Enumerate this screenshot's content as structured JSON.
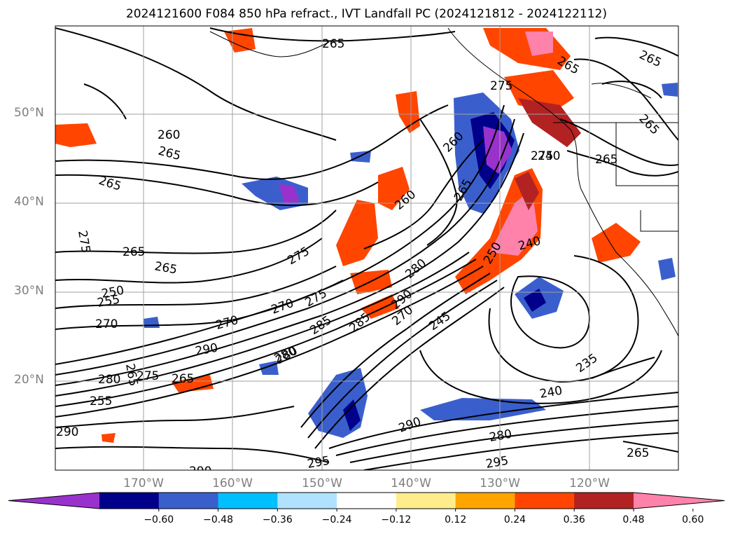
{
  "title": "2024121600 F084 850 hPa refract., IVT Landfall PC (2024121812 - 2024122112)",
  "lat_labels": [
    "50°N",
    "40°N",
    "30°N",
    "20°N"
  ],
  "lon_labels": [
    "170°W",
    "160°W",
    "150°W",
    "140°W",
    "130°W",
    "120°W"
  ],
  "contour_labels": [
    "265",
    "265",
    "265",
    "265",
    "265",
    "265",
    "260",
    "275",
    "265",
    "260",
    "250",
    "255",
    "270",
    "270",
    "265",
    "275",
    "290",
    "280",
    "275",
    "265",
    "280",
    "255",
    "290",
    "290",
    "270",
    "275",
    "280",
    "285",
    "285",
    "290",
    "270",
    "260",
    "265",
    "280",
    "245",
    "250",
    "240",
    "275",
    "275",
    "265",
    "265",
    "235",
    "240",
    "240",
    "280",
    "295",
    "295",
    "265",
    "290"
  ],
  "colorbar": {
    "ticks": [
      "−0.60",
      "−0.48",
      "−0.36",
      "−0.24",
      "−0.12",
      "0.12",
      "0.24",
      "0.36",
      "0.48",
      "0.60"
    ],
    "colors": [
      "#9932cc",
      "#00008b",
      "#3a5fcd",
      "#00bfff",
      "#b0e2ff",
      "#ffffff",
      "#ffec8b",
      "#ffa500",
      "#ff4500",
      "#b22222",
      "#ff82ab"
    ]
  }
}
